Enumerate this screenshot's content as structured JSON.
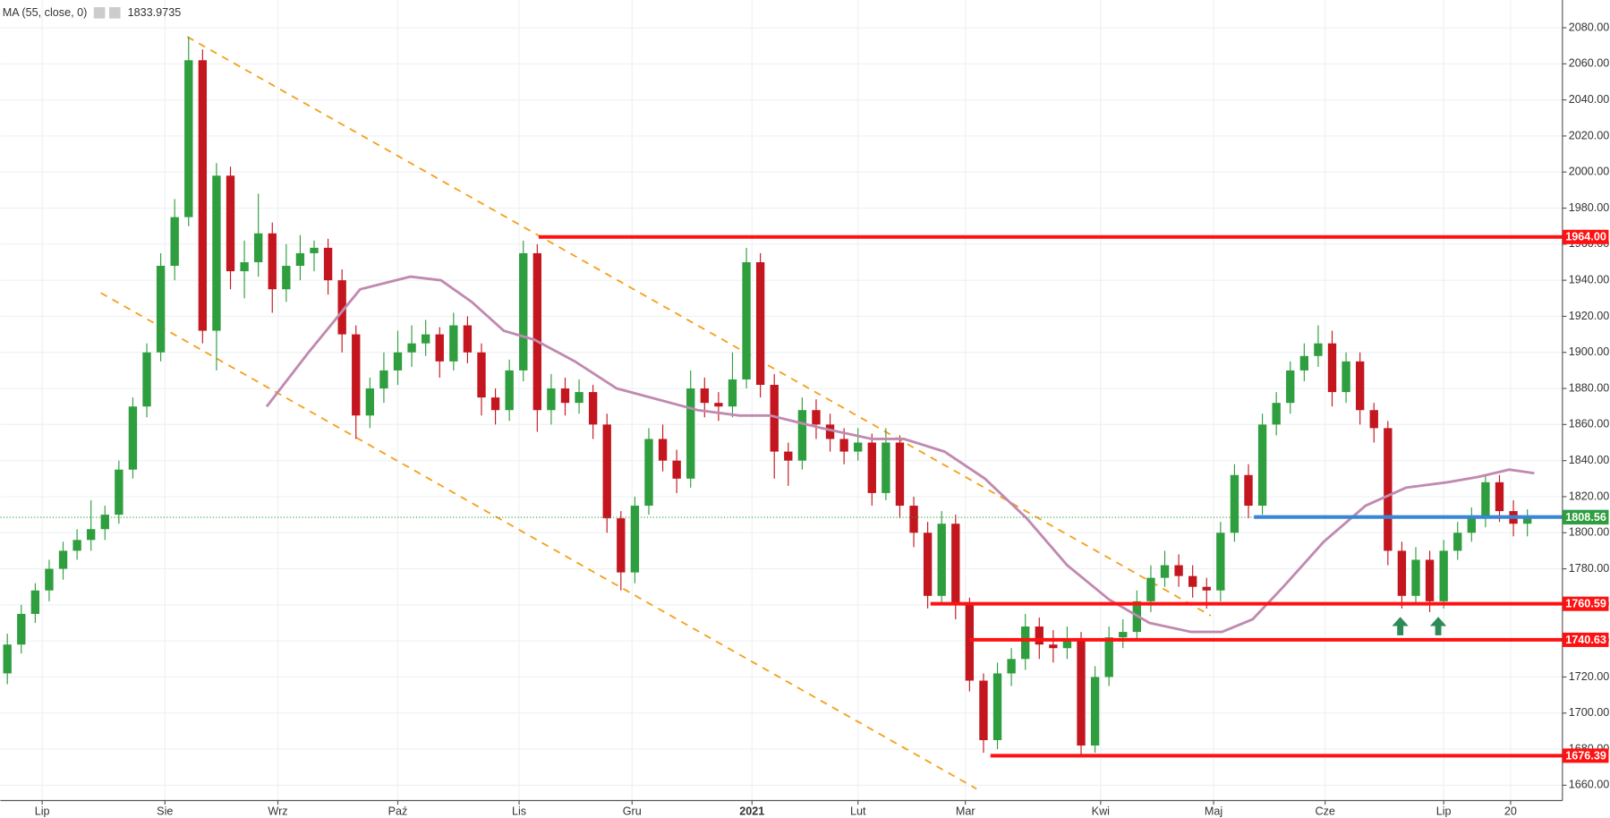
{
  "chart_data": {
    "type": "candlestick",
    "indicator": {
      "name": "MA (55, close, 0)",
      "value": 1833.9735,
      "color": "#c08ab0",
      "x": [
        18.6,
        21.6,
        25.3,
        28.9,
        31.1,
        33.3,
        35.6,
        37.8,
        40.7,
        43.7,
        46.6,
        49.5,
        52.5,
        54.7,
        58.4,
        62.0,
        64.3,
        67.2,
        70.1,
        73.1,
        76.0,
        79.0,
        81.9,
        84.9,
        87.1,
        89.3,
        91.5,
        94.4,
        97.4,
        100.3,
        103.3,
        105.5,
        107.7,
        109.5
      ],
      "values": [
        1870,
        1900,
        1935,
        1942,
        1940,
        1928,
        1912,
        1907,
        1895,
        1880,
        1874,
        1868,
        1865,
        1865,
        1858,
        1852,
        1852,
        1845,
        1830,
        1808,
        1782,
        1763,
        1750,
        1745,
        1745,
        1752,
        1770,
        1795,
        1815,
        1825,
        1828,
        1831,
        1835,
        1833
      ]
    },
    "up_color": "#2e9e3e",
    "down_color": "#c4161f",
    "candles": [
      [
        1722,
        1744,
        1716,
        1738
      ],
      [
        1738,
        1760,
        1733,
        1755
      ],
      [
        1755,
        1772,
        1750,
        1768
      ],
      [
        1768,
        1785,
        1762,
        1780
      ],
      [
        1780,
        1795,
        1774,
        1790
      ],
      [
        1790,
        1802,
        1785,
        1796
      ],
      [
        1796,
        1818,
        1790,
        1802
      ],
      [
        1802,
        1815,
        1796,
        1810
      ],
      [
        1810,
        1840,
        1805,
        1835
      ],
      [
        1835,
        1875,
        1830,
        1870
      ],
      [
        1870,
        1905,
        1864,
        1900
      ],
      [
        1900,
        1955,
        1895,
        1948
      ],
      [
        1948,
        1985,
        1940,
        1975
      ],
      [
        1975,
        2075,
        1970,
        2062
      ],
      [
        2062,
        2068,
        1905,
        1912
      ],
      [
        1912,
        2005,
        1890,
        1998
      ],
      [
        1998,
        2003,
        1935,
        1945
      ],
      [
        1945,
        1962,
        1930,
        1950
      ],
      [
        1950,
        1988,
        1942,
        1966
      ],
      [
        1966,
        1972,
        1922,
        1935
      ],
      [
        1935,
        1960,
        1928,
        1948
      ],
      [
        1948,
        1965,
        1940,
        1955
      ],
      [
        1955,
        1962,
        1945,
        1958
      ],
      [
        1958,
        1963,
        1932,
        1940
      ],
      [
        1940,
        1946,
        1900,
        1910
      ],
      [
        1910,
        1915,
        1852,
        1865
      ],
      [
        1865,
        1886,
        1858,
        1880
      ],
      [
        1880,
        1900,
        1872,
        1890
      ],
      [
        1890,
        1912,
        1882,
        1900
      ],
      [
        1900,
        1915,
        1892,
        1905
      ],
      [
        1905,
        1918,
        1898,
        1910
      ],
      [
        1910,
        1914,
        1886,
        1895
      ],
      [
        1895,
        1922,
        1890,
        1915
      ],
      [
        1915,
        1920,
        1894,
        1900
      ],
      [
        1900,
        1905,
        1865,
        1875
      ],
      [
        1875,
        1880,
        1860,
        1868
      ],
      [
        1868,
        1896,
        1862,
        1890
      ],
      [
        1890,
        1962,
        1884,
        1955
      ],
      [
        1955,
        1960,
        1856,
        1868
      ],
      [
        1868,
        1888,
        1860,
        1880
      ],
      [
        1880,
        1886,
        1865,
        1872
      ],
      [
        1872,
        1885,
        1866,
        1878
      ],
      [
        1878,
        1882,
        1852,
        1860
      ],
      [
        1860,
        1866,
        1800,
        1808
      ],
      [
        1808,
        1812,
        1768,
        1778
      ],
      [
        1778,
        1820,
        1772,
        1815
      ],
      [
        1815,
        1858,
        1810,
        1852
      ],
      [
        1852,
        1860,
        1834,
        1840
      ],
      [
        1840,
        1846,
        1822,
        1830
      ],
      [
        1830,
        1890,
        1825,
        1880
      ],
      [
        1880,
        1886,
        1864,
        1872
      ],
      [
        1872,
        1878,
        1862,
        1870
      ],
      [
        1870,
        1900,
        1864,
        1885
      ],
      [
        1885,
        1958,
        1880,
        1950
      ],
      [
        1950,
        1955,
        1875,
        1882
      ],
      [
        1882,
        1888,
        1830,
        1845
      ],
      [
        1845,
        1850,
        1826,
        1840
      ],
      [
        1840,
        1875,
        1835,
        1868
      ],
      [
        1868,
        1874,
        1852,
        1860
      ],
      [
        1860,
        1866,
        1845,
        1852
      ],
      [
        1852,
        1858,
        1838,
        1845
      ],
      [
        1845,
        1858,
        1840,
        1850
      ],
      [
        1850,
        1855,
        1815,
        1822
      ],
      [
        1822,
        1858,
        1818,
        1850
      ],
      [
        1850,
        1854,
        1808,
        1815
      ],
      [
        1815,
        1820,
        1792,
        1800
      ],
      [
        1800,
        1806,
        1758,
        1765
      ],
      [
        1765,
        1812,
        1760,
        1805
      ],
      [
        1805,
        1810,
        1752,
        1760
      ],
      [
        1760,
        1764,
        1712,
        1718
      ],
      [
        1718,
        1722,
        1678,
        1685
      ],
      [
        1685,
        1728,
        1680,
        1722
      ],
      [
        1722,
        1736,
        1715,
        1730
      ],
      [
        1730,
        1755,
        1724,
        1748
      ],
      [
        1748,
        1753,
        1730,
        1738
      ],
      [
        1738,
        1746,
        1728,
        1736
      ],
      [
        1736,
        1748,
        1730,
        1740
      ],
      [
        1740,
        1745,
        1677,
        1682
      ],
      [
        1682,
        1726,
        1678,
        1720
      ],
      [
        1720,
        1748,
        1715,
        1742
      ],
      [
        1742,
        1752,
        1736,
        1745
      ],
      [
        1745,
        1768,
        1740,
        1762
      ],
      [
        1762,
        1782,
        1756,
        1775
      ],
      [
        1775,
        1790,
        1770,
        1782
      ],
      [
        1782,
        1788,
        1770,
        1776
      ],
      [
        1776,
        1782,
        1764,
        1770
      ],
      [
        1770,
        1775,
        1758,
        1768
      ],
      [
        1768,
        1806,
        1762,
        1800
      ],
      [
        1800,
        1838,
        1795,
        1832
      ],
      [
        1832,
        1838,
        1808,
        1815
      ],
      [
        1815,
        1866,
        1810,
        1860
      ],
      [
        1860,
        1878,
        1854,
        1872
      ],
      [
        1872,
        1895,
        1866,
        1890
      ],
      [
        1890,
        1905,
        1884,
        1898
      ],
      [
        1898,
        1915,
        1892,
        1905
      ],
      [
        1905,
        1912,
        1870,
        1878
      ],
      [
        1878,
        1900,
        1872,
        1895
      ],
      [
        1895,
        1900,
        1860,
        1868
      ],
      [
        1868,
        1872,
        1850,
        1858
      ],
      [
        1858,
        1862,
        1782,
        1790
      ],
      [
        1790,
        1795,
        1758,
        1765
      ],
      [
        1765,
        1792,
        1760,
        1785
      ],
      [
        1785,
        1790,
        1756,
        1762
      ],
      [
        1762,
        1796,
        1758,
        1790
      ],
      [
        1790,
        1806,
        1785,
        1800
      ],
      [
        1800,
        1814,
        1795,
        1808
      ],
      [
        1808,
        1832,
        1803,
        1828
      ],
      [
        1828,
        1832,
        1806,
        1812
      ],
      [
        1812,
        1818,
        1798,
        1805
      ],
      [
        1805,
        1813,
        1798,
        1808
      ]
    ],
    "xlim": [
      -0.5,
      111
    ],
    "ylim": [
      1651.5,
      2095.4
    ],
    "xticks": [
      {
        "value": 2.5,
        "label": "Lip"
      },
      {
        "value": 11.3,
        "label": "Sie"
      },
      {
        "value": 19.4,
        "label": "Wrz"
      },
      {
        "value": 28,
        "label": "Paź"
      },
      {
        "value": 36.7,
        "label": "Lis"
      },
      {
        "value": 44.8,
        "label": "Gru"
      },
      {
        "value": 53.4,
        "label": "2021"
      },
      {
        "value": 61,
        "label": "Lut"
      },
      {
        "value": 68.7,
        "label": "Mar"
      },
      {
        "value": 78.4,
        "label": "Kwi"
      },
      {
        "value": 86.5,
        "label": "Maj"
      },
      {
        "value": 94.5,
        "label": "Cze"
      },
      {
        "value": 103,
        "label": "Lip"
      },
      {
        "value": 107.8,
        "label": "20"
      }
    ],
    "yticks": [
      {
        "value": 1660,
        "label": "1660.00"
      },
      {
        "value": 1680,
        "label": "1680.00"
      },
      {
        "value": 1700,
        "label": "1700.00"
      },
      {
        "value": 1720,
        "label": "1720.00"
      },
      {
        "value": 1740,
        "label": "1740.00"
      },
      {
        "value": 1760,
        "label": "1760.00"
      },
      {
        "value": 1780,
        "label": "1780.00"
      },
      {
        "value": 1800,
        "label": "1800.00"
      },
      {
        "value": 1820,
        "label": "1820.00"
      },
      {
        "value": 1840,
        "label": "1840.00"
      },
      {
        "value": 1860,
        "label": "1860.00"
      },
      {
        "value": 1880,
        "label": "1880.00"
      },
      {
        "value": 1900,
        "label": "1900.00"
      },
      {
        "value": 1920,
        "label": "1920.00"
      },
      {
        "value": 1940,
        "label": "1940.00"
      },
      {
        "value": 1960,
        "label": "1960.00"
      },
      {
        "value": 1980,
        "label": "1980.00"
      },
      {
        "value": 2000,
        "label": "2000.00"
      },
      {
        "value": 2020,
        "label": "2020.00"
      },
      {
        "value": 2040,
        "label": "2040.00"
      },
      {
        "value": 2060,
        "label": "2060.00"
      },
      {
        "value": 2080,
        "label": "2080.00"
      }
    ],
    "grid": true,
    "levels": [
      {
        "value": 1964,
        "label": "1964.00",
        "x_start": 38.1,
        "color": "#ff1111"
      },
      {
        "value": 1808.72,
        "x_start": 89.4,
        "color": "#3a86d4"
      },
      {
        "value": 1760.59,
        "x_start": 66.2,
        "color": "#ff1111"
      },
      {
        "value": 1740.63,
        "x_start": 69.0,
        "color": "#ff1111"
      },
      {
        "value": 1676.39,
        "x_start": 70.5,
        "color": "#ff1111"
      }
    ],
    "last_price": {
      "value": 1808.56,
      "color": "#2e9e3e"
    },
    "trendlines": [
      {
        "x": [
          12.9,
          86.3
        ],
        "values": [
          2075,
          1754
        ],
        "color": "#f5a01a"
      },
      {
        "x": [
          6.7,
          69.5
        ],
        "values": [
          1933,
          1658
        ],
        "color": "#f5a01a"
      }
    ]
  }
}
